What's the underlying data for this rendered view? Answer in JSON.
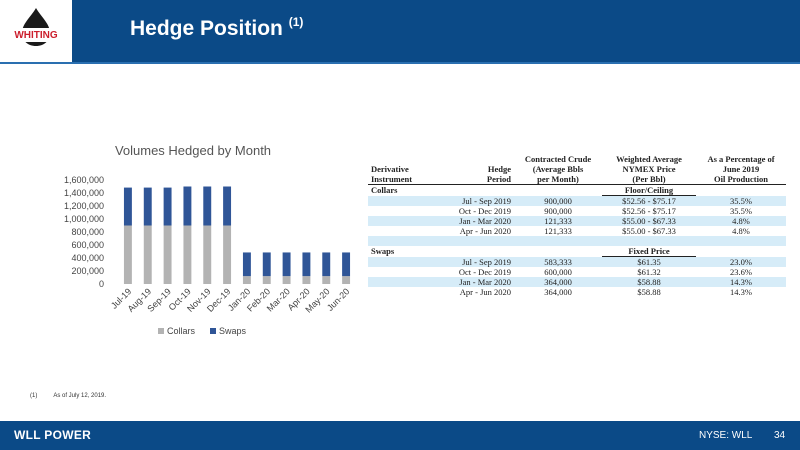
{
  "header": {
    "title": "Hedge Position",
    "title_superscript": "(1)",
    "logo_text": "WHITING"
  },
  "colors": {
    "header_blue": "#0b4a87",
    "collars": "#b3b3b3",
    "swaps": "#2f5597",
    "table_highlight": "#d6ecf8",
    "logo_red": "#cc1f2d"
  },
  "chart_data": {
    "type": "bar",
    "stacked": true,
    "title": "Volumes Hedged by Month",
    "categories": [
      "Jul-19",
      "Aug-19",
      "Sep-19",
      "Oct-19",
      "Nov-19",
      "Dec-19",
      "Jan-20",
      "Feb-20",
      "Mar-20",
      "Apr-20",
      "May-20",
      "Jun-20"
    ],
    "series": [
      {
        "name": "Collars",
        "color": "#b3b3b3",
        "values": [
          900000,
          900000,
          900000,
          900000,
          900000,
          900000,
          121333,
          121333,
          121333,
          121333,
          121333,
          121333
        ]
      },
      {
        "name": "Swaps",
        "color": "#2f5597",
        "values": [
          583333,
          583333,
          583333,
          600000,
          600000,
          600000,
          364000,
          364000,
          364000,
          364000,
          364000,
          364000
        ]
      }
    ],
    "y_ticks": [
      "0",
      "200,000",
      "400,000",
      "600,000",
      "800,000",
      "1,000,000",
      "1,200,000",
      "1,400,000",
      "1,600,000"
    ],
    "ylim": [
      0,
      1600000
    ],
    "grid": false,
    "legend": "bottom"
  },
  "table": {
    "headers": {
      "col1": [
        "Derivative",
        "Instrument"
      ],
      "col2": [
        "Hedge",
        "Period"
      ],
      "col3": [
        "Contracted Crude",
        "(Average Bbls",
        "per Month)"
      ],
      "col4": [
        "Weighted Average",
        "NYMEX Price",
        "(Per Bbl)"
      ],
      "col5": [
        "As a Percentage of",
        "June 2019",
        "Oil Production"
      ]
    },
    "collars": {
      "label": "Collars",
      "sublabel": "Floor/Ceiling",
      "rows": [
        {
          "period": "Jul  - Sep 2019",
          "volume": "900,000",
          "price": "$52.56 - $75.17",
          "pct": "35.5%"
        },
        {
          "period": "Oct - Dec 2019",
          "volume": "900,000",
          "price": "$52.56 - $75.17",
          "pct": "35.5%"
        },
        {
          "period": "Jan  - Mar 2020",
          "volume": "121,333",
          "price": "$55.00 - $67.33",
          "pct": "4.8%"
        },
        {
          "period": "Apr  - Jun 2020",
          "volume": "121,333",
          "price": "$55.00 - $67.33",
          "pct": "4.8%"
        }
      ]
    },
    "swaps": {
      "label": "Swaps",
      "sublabel": "Fixed Price",
      "rows": [
        {
          "period": "Jul  - Sep 2019",
          "volume": "583,333",
          "price": "$61.35",
          "pct": "23.0%"
        },
        {
          "period": "Oct - Dec 2019",
          "volume": "600,000",
          "price": "$61.32",
          "pct": "23.6%"
        },
        {
          "period": "Jan  - Mar 2020",
          "volume": "364,000",
          "price": "$58.88",
          "pct": "14.3%"
        },
        {
          "period": "Apr  - Jun 2020",
          "volume": "364,000",
          "price": "$58.88",
          "pct": "14.3%"
        }
      ]
    }
  },
  "footnote": {
    "number": "(1)",
    "text": "As of July 12, 2019."
  },
  "footer": {
    "brand": "WLL POWER",
    "ticker": "NYSE: WLL",
    "page": "34"
  }
}
